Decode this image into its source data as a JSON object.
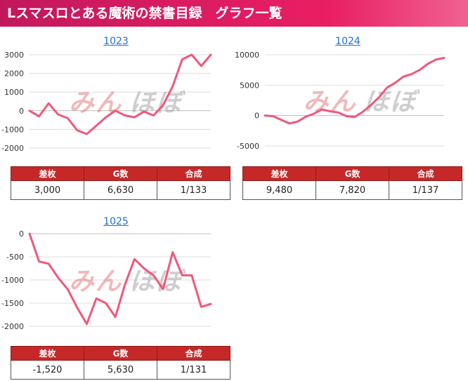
{
  "header": {
    "title": "Lスマスロとある魔術の禁書目録　グラフ一覧"
  },
  "table_headers": [
    "差枚",
    "G数",
    "合成"
  ],
  "watermark": {
    "text_pink": "みん",
    "text_gray": "ほぼ",
    "color_pink": "#e57373",
    "color_gray": "#9e9e9e"
  },
  "colors": {
    "line": "#f0587a",
    "grid": "#dddddd",
    "header_red": "#c62828"
  },
  "machines": [
    {
      "title": "1023",
      "stats": [
        "3,000",
        "6,630",
        "1/133"
      ],
      "chart_data": {
        "type": "line",
        "yticks": [
          3000,
          2000,
          1000,
          0,
          -1000,
          -2000
        ],
        "ylim": [
          -2000,
          3000
        ],
        "x": [
          0,
          1,
          2,
          3,
          4,
          5,
          6,
          7,
          8,
          9,
          10,
          11,
          12,
          13,
          14,
          15,
          16,
          17,
          18,
          19
        ],
        "values": [
          0,
          -300,
          400,
          -200,
          -400,
          -1050,
          -1250,
          -800,
          -350,
          0,
          -250,
          -350,
          -50,
          -250,
          300,
          1300,
          2750,
          3000,
          2400,
          3000
        ]
      }
    },
    {
      "title": "1024",
      "stats": [
        "9,480",
        "7,820",
        "1/137"
      ],
      "chart_data": {
        "type": "line",
        "yticks": [
          10000,
          5000,
          0,
          -5000
        ],
        "ylim": [
          -5000,
          10000
        ],
        "x": [
          0,
          1,
          2,
          3,
          4,
          5,
          6,
          7,
          8,
          9,
          10,
          11,
          12,
          13,
          14,
          15,
          16,
          17,
          18,
          19,
          20,
          21,
          22
        ],
        "values": [
          0,
          -100,
          -700,
          -1300,
          -1000,
          -200,
          300,
          1000,
          700,
          500,
          -100,
          -250,
          600,
          1700,
          3000,
          4600,
          5400,
          6400,
          6800,
          7500,
          8500,
          9200,
          9480
        ]
      }
    },
    {
      "title": "1025",
      "stats": [
        "-1,520",
        "5,630",
        "1/131"
      ],
      "chart_data": {
        "type": "line",
        "yticks": [
          0,
          -500,
          -1000,
          -1500,
          -2000
        ],
        "ylim": [
          -2000,
          0
        ],
        "x": [
          0,
          1,
          2,
          3,
          4,
          5,
          6,
          7,
          8,
          9,
          10,
          11,
          12,
          13,
          14,
          15,
          16,
          17,
          18,
          19
        ],
        "values": [
          0,
          -600,
          -650,
          -950,
          -1200,
          -1600,
          -1950,
          -1400,
          -1500,
          -1800,
          -1100,
          -550,
          -750,
          -900,
          -1200,
          -400,
          -900,
          -900,
          -1580,
          -1520
        ]
      }
    }
  ]
}
